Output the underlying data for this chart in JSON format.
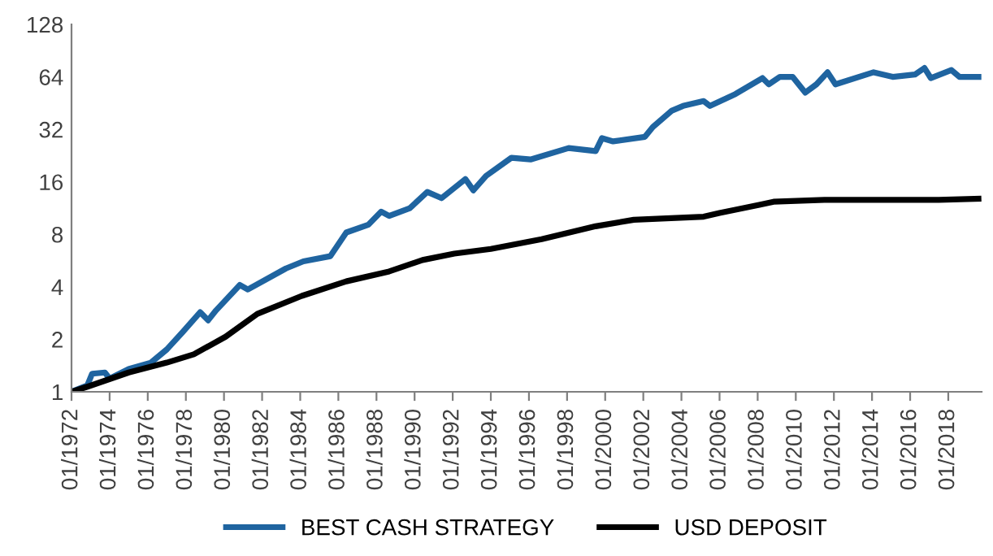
{
  "chart_data": {
    "type": "line",
    "log": "y",
    "grid": false,
    "legend": "bottom",
    "marker": "none",
    "line_style": "solid",
    "xlim": [
      "1972-01",
      "2019-10"
    ],
    "ylim": [
      1,
      128
    ],
    "yticks": [
      1,
      2,
      4,
      8,
      16,
      32,
      64,
      128
    ],
    "xticks": [
      {
        "value": "1972-01",
        "label": "01/1972"
      },
      {
        "value": "1974-01",
        "label": "01/1974"
      },
      {
        "value": "1976-01",
        "label": "01/1976"
      },
      {
        "value": "1978-01",
        "label": "01/1978"
      },
      {
        "value": "1980-01",
        "label": "01/1980"
      },
      {
        "value": "1982-01",
        "label": "01/1982"
      },
      {
        "value": "1984-01",
        "label": "01/1984"
      },
      {
        "value": "1986-01",
        "label": "01/1986"
      },
      {
        "value": "1988-01",
        "label": "01/1988"
      },
      {
        "value": "1990-01",
        "label": "01/1990"
      },
      {
        "value": "1992-01",
        "label": "01/1992"
      },
      {
        "value": "1994-01",
        "label": "01/1994"
      },
      {
        "value": "1996-01",
        "label": "01/1996"
      },
      {
        "value": "1998-01",
        "label": "01/1998"
      },
      {
        "value": "2000-01",
        "label": "01/2000"
      },
      {
        "value": "2002-01",
        "label": "01/2002"
      },
      {
        "value": "2004-01",
        "label": "01/2004"
      },
      {
        "value": "2006-01",
        "label": "01/2006"
      },
      {
        "value": "2008-01",
        "label": "01/2008"
      },
      {
        "value": "2010-01",
        "label": "01/2010"
      },
      {
        "value": "2012-01",
        "label": "01/2012"
      },
      {
        "value": "2014-01",
        "label": "01/2014"
      },
      {
        "value": "2016-01",
        "label": "01/2016"
      },
      {
        "value": "2018-01",
        "label": "01/2018"
      }
    ],
    "series": [
      {
        "name": "BEST CASH STRATEGY",
        "color": "#1f64a0",
        "x": [
          "1972-01",
          "1972-11",
          "1973-02",
          "1973-10",
          "1974-01",
          "1975-01",
          "1976-03",
          "1977-01",
          "1977-11",
          "1978-10",
          "1979-03",
          "1979-08",
          "1980-11",
          "1981-04",
          "1983-04",
          "1984-03",
          "1985-08",
          "1986-06",
          "1987-08",
          "1988-04",
          "1988-09",
          "1989-10",
          "1990-09",
          "1991-06",
          "1992-09",
          "1993-02",
          "1993-10",
          "1995-02",
          "1996-02",
          "1998-02",
          "1999-07",
          "1999-11",
          "2000-06",
          "2002-02",
          "2002-07",
          "2003-07",
          "2004-02",
          "2005-03",
          "2005-07",
          "2006-11",
          "2008-04",
          "2008-08",
          "2009-03",
          "2009-11",
          "2010-07",
          "2011-02",
          "2011-09",
          "2012-02",
          "2014-02",
          "2015-02",
          "2016-04",
          "2016-10",
          "2017-02",
          "2018-03",
          "2018-08",
          "2019-08"
        ],
        "values": [
          1.0,
          1.09,
          1.27,
          1.29,
          1.19,
          1.35,
          1.47,
          1.75,
          2.2,
          2.86,
          2.57,
          2.93,
          4.1,
          3.86,
          5.1,
          5.6,
          6.0,
          8.2,
          9.1,
          10.8,
          10.2,
          11.3,
          14.0,
          12.9,
          16.6,
          14.3,
          17.3,
          22,
          21.5,
          25,
          24,
          28.5,
          27.3,
          29,
          33,
          41,
          43.6,
          46.5,
          43.6,
          51,
          63,
          58,
          64,
          64,
          52,
          58,
          68,
          58,
          68,
          64,
          66,
          72,
          63,
          70,
          64,
          64
        ]
      },
      {
        "name": "USD DEPOSIT",
        "color": "#000000",
        "x": [
          "1972-01",
          "1972-11",
          "1975-01",
          "1977-01",
          "1978-06",
          "1980-02",
          "1981-10",
          "1984-02",
          "1986-06",
          "1988-09",
          "1990-06",
          "1992-02",
          "1994-01",
          "1996-09",
          "1999-07",
          "2001-07",
          "2005-03",
          "2006-01",
          "2008-02",
          "2008-11",
          "2011-07",
          "2017-07",
          "2019-08"
        ],
        "values": [
          1.0,
          1.07,
          1.29,
          1.47,
          1.64,
          2.07,
          2.8,
          3.55,
          4.3,
          4.9,
          5.7,
          6.2,
          6.6,
          7.5,
          8.9,
          9.7,
          10.1,
          10.6,
          11.8,
          12.3,
          12.6,
          12.6,
          12.8
        ]
      }
    ]
  }
}
